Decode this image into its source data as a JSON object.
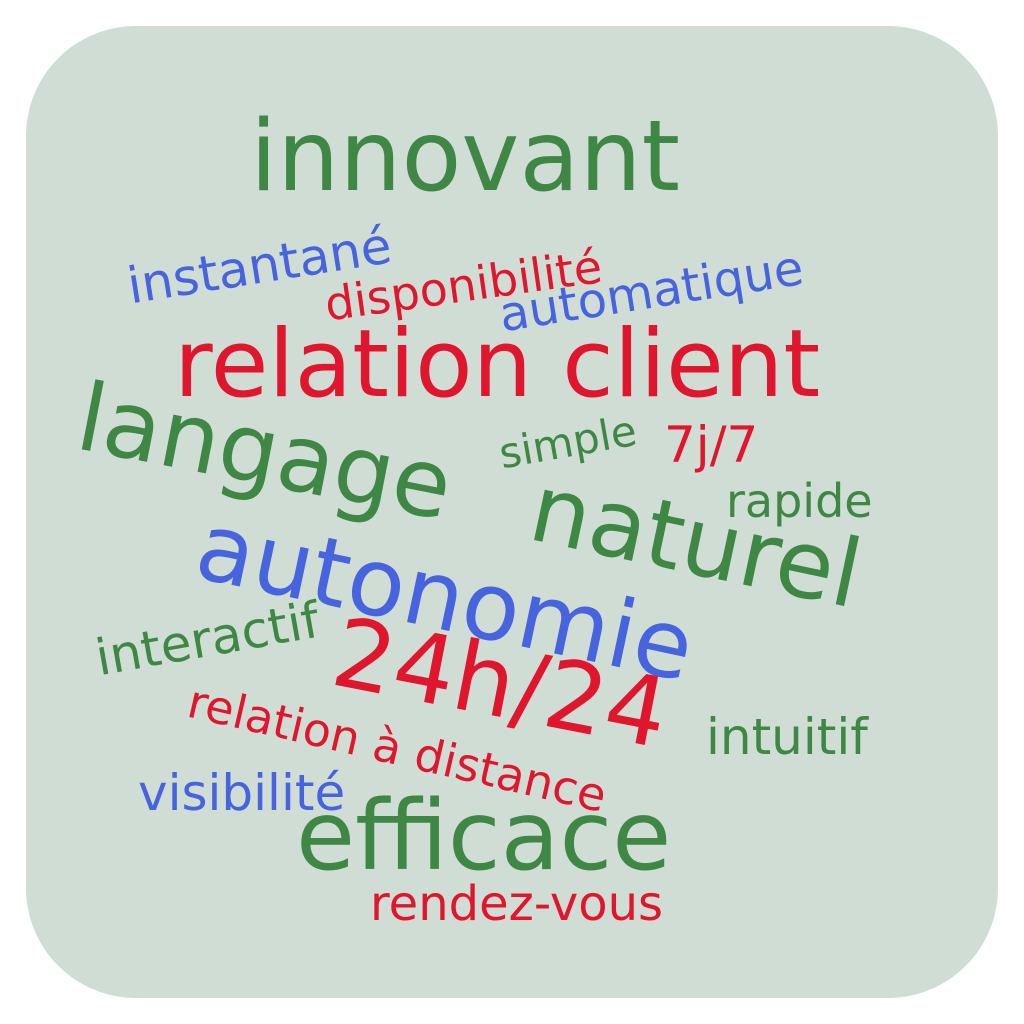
{
  "colors": {
    "background": "#cfddd4",
    "green": "#3f8745",
    "red": "#e0162f",
    "blue": "#4763dd"
  },
  "words": {
    "innovant": "innovant",
    "instantane": "instantané",
    "disponibilite": "disponibilité",
    "automatique": "automatique",
    "relation_client": "relation client",
    "langage": "langage",
    "simple": "simple",
    "sept_sur_sept": "7j/7",
    "rapide": "rapide",
    "naturel": "naturel",
    "autonomie": "autonomie",
    "interactif": "interactif",
    "h24": "24h/24",
    "relation_a_distance": "relation à distance",
    "intuitif": "intuitif",
    "visibilite": "visibilité",
    "efficace": "efficace",
    "rendez_vous": "rendez-vous"
  }
}
